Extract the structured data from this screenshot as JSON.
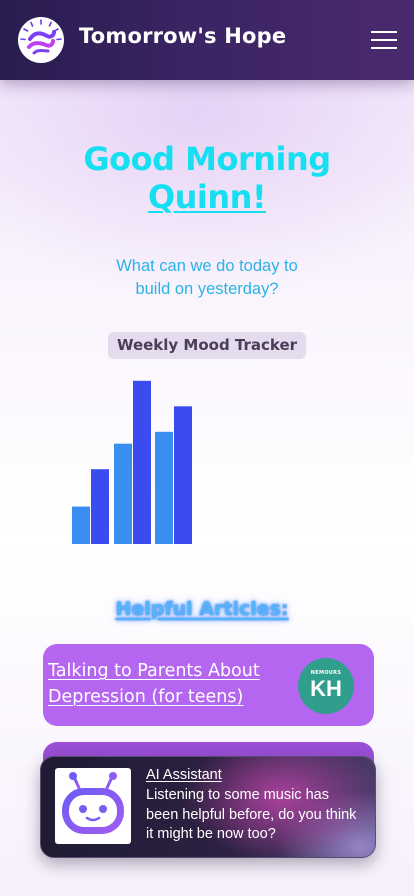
{
  "header": {
    "brand": "Tomorrow's Hope",
    "logo_icon": "hope-swirl-logo",
    "menu_icon": "hamburger-menu-icon"
  },
  "greeting": {
    "line1": "Good Morning",
    "name": "Quinn!"
  },
  "question": "What can we do today to build on yesterday?",
  "mood_tracker": {
    "label": "Weekly Mood Tracker"
  },
  "chart_data": {
    "type": "bar",
    "title": "Weekly Mood Tracker",
    "categories": [
      "",
      "",
      "",
      "",
      "",
      ""
    ],
    "values": [
      2.2,
      4.4,
      5.9,
      9.6,
      6.6,
      8.1
    ],
    "ylim": [
      0,
      10
    ],
    "grid": false,
    "colors": [
      "#3a8ef0",
      "#3a4cf0",
      "#3a8ef0",
      "#3a4cf0",
      "#3a8ef0",
      "#3a4cf0"
    ]
  },
  "articles": {
    "heading": "Helpful Articles:",
    "items": [
      {
        "title": "Talking to Parents About Depression (for teens)",
        "source_badge_small": "NEMOURS",
        "source_badge": "KH"
      }
    ]
  },
  "assistant": {
    "title": "AI Assistant",
    "message": "Listening to some music has been helpful before, do you think it might be now too?",
    "avatar_icon": "robot-icon"
  },
  "colors": {
    "header_bg": "#2a1c4f",
    "greeting": "#17dff2",
    "question": "#2ab3e6",
    "card": "#b566f1",
    "badge": "#2f9e8c"
  }
}
